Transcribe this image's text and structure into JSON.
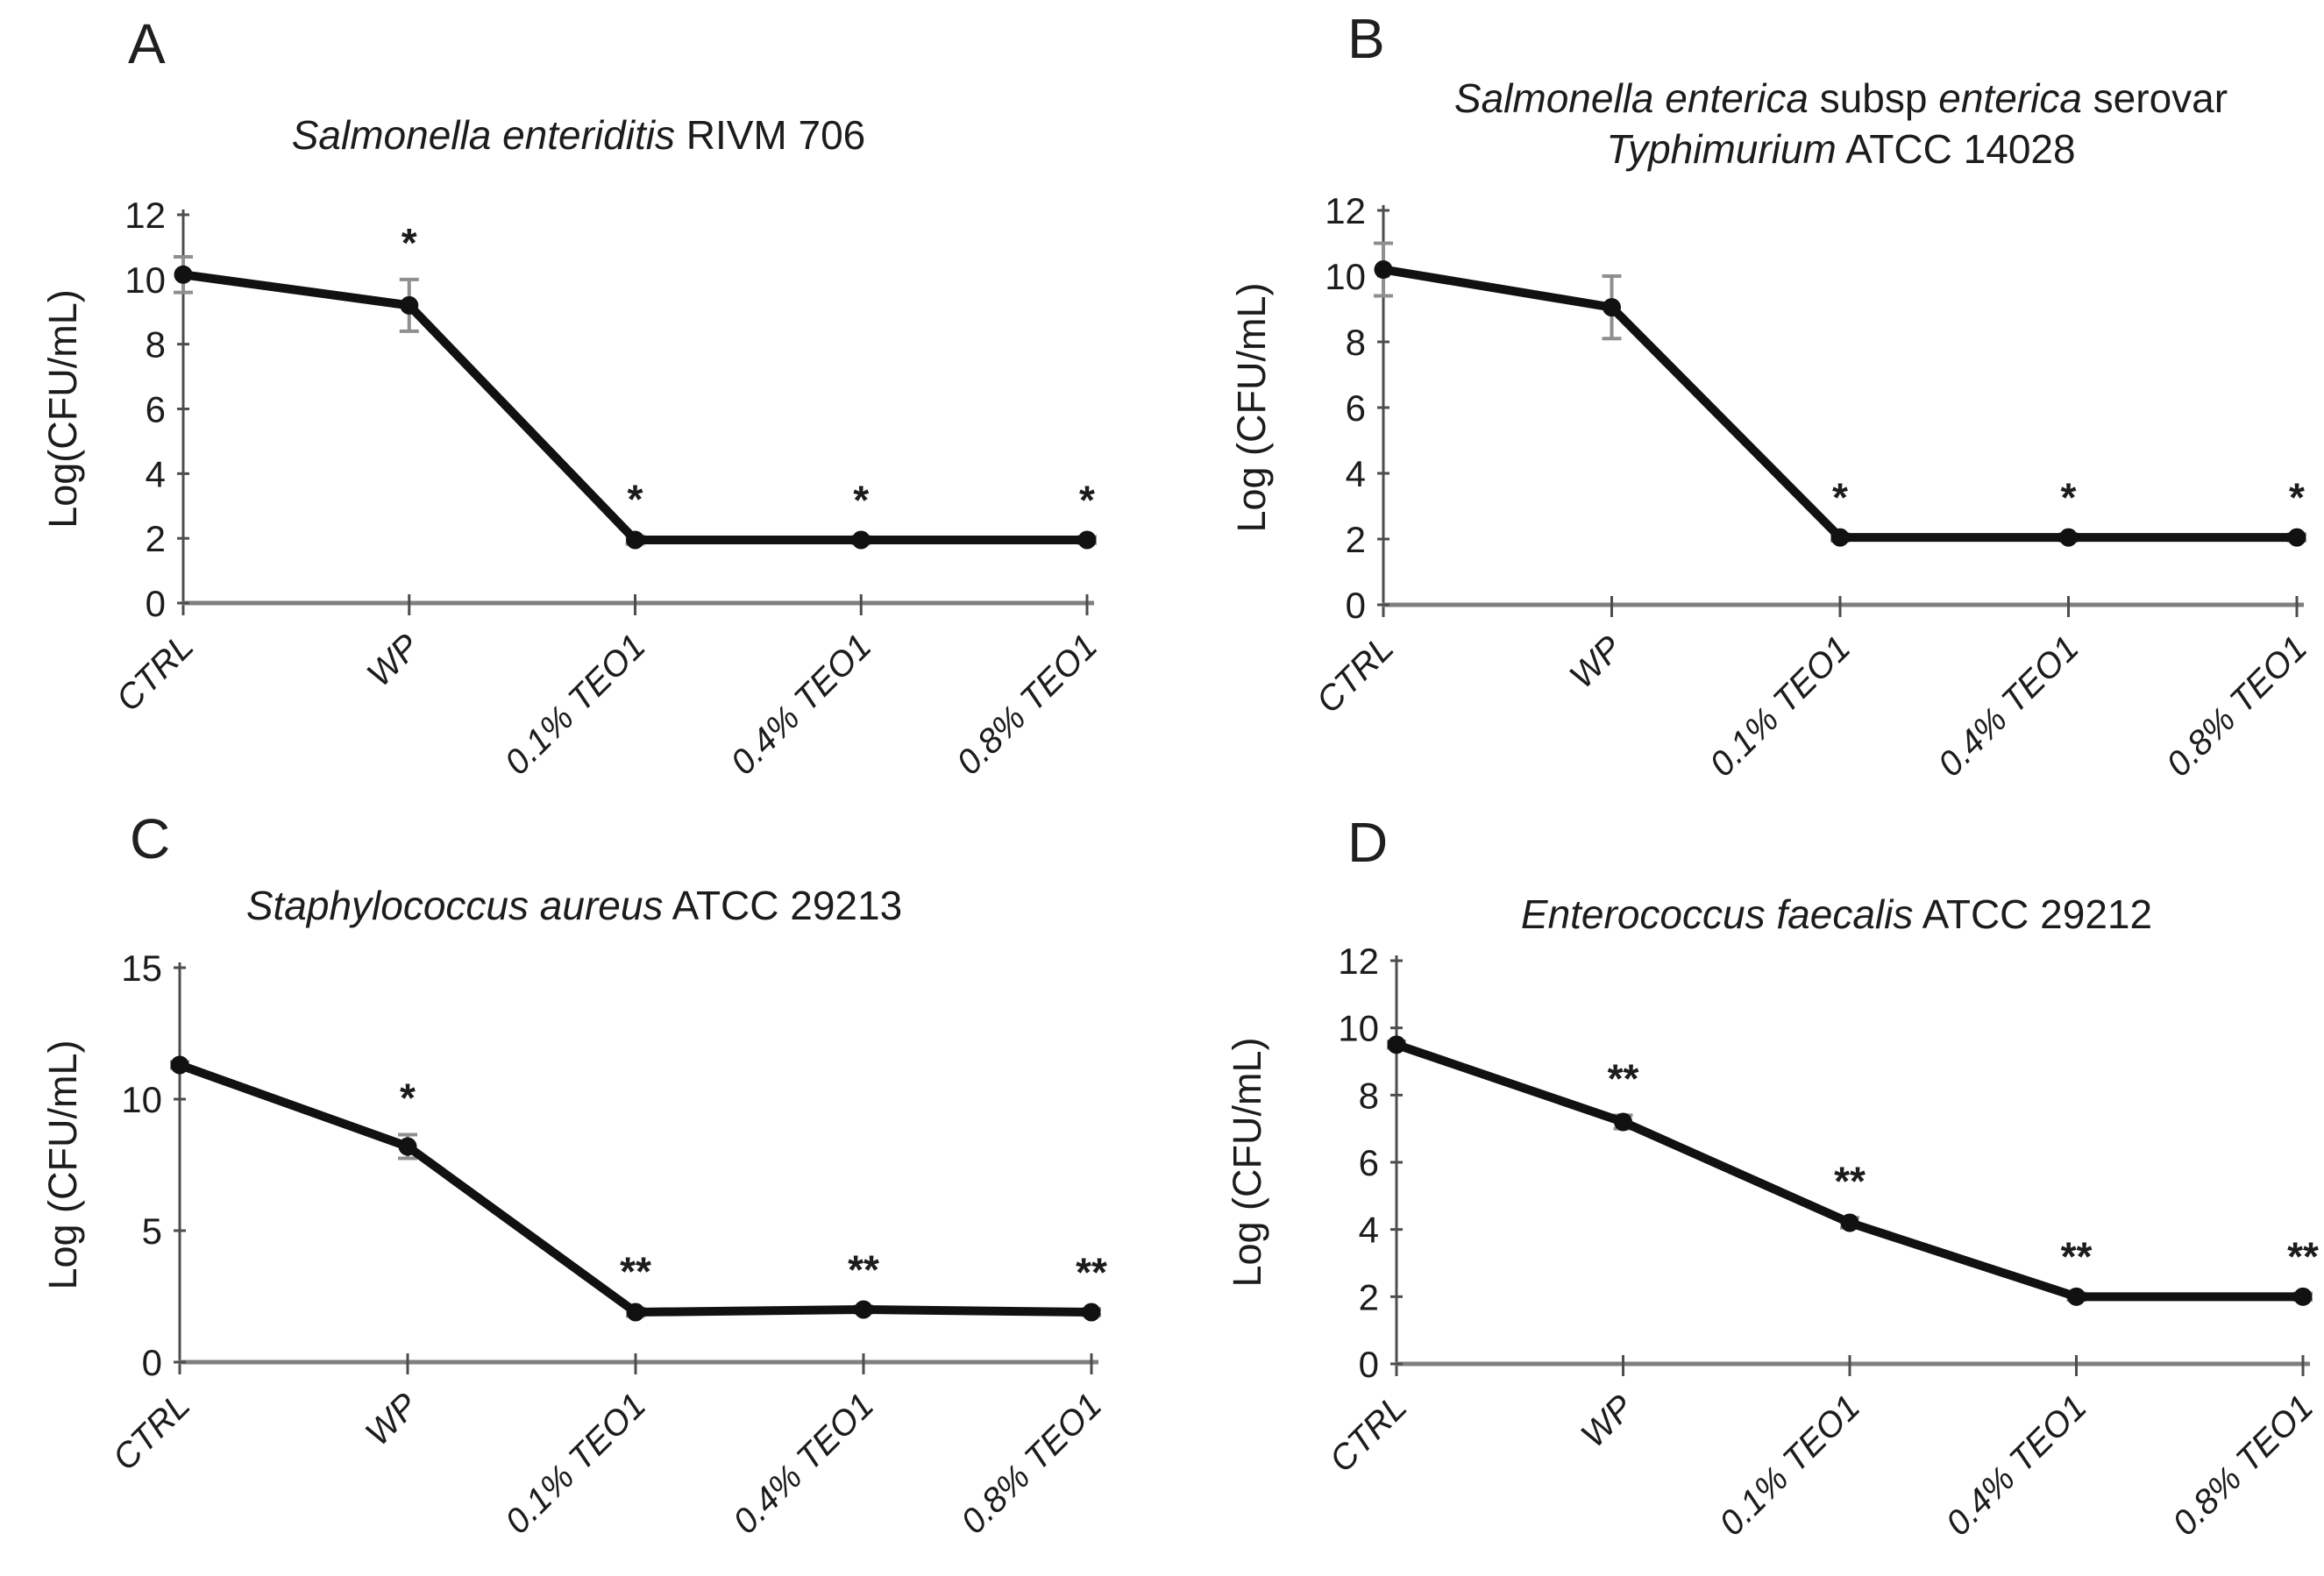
{
  "style": {
    "line_color": "#111111",
    "marker_color": "#111111",
    "error_bar_color": "#8f8f8f",
    "x_axis_color": "#7f7f7f",
    "y_axis_color": "#4d4d4d",
    "text_color": "#1c1c1c",
    "background": "#ffffff"
  },
  "chart_data": [
    {
      "type": "line",
      "letter": "A",
      "title_lines": [
        [
          {
            "text": "Salmonella enteriditis",
            "italic": true
          },
          {
            "text": " RIVM 706",
            "italic": false
          }
        ]
      ],
      "ylabel": "Log(CFU/mL)",
      "xlabel": "",
      "categories": [
        "CTRL",
        "WP",
        "0.1% TEO1",
        "0.4% TEO1",
        "0.8% TEO1"
      ],
      "values": [
        10.15,
        9.2,
        1.95,
        1.95,
        1.95
      ],
      "errors": [
        0.55,
        0.8,
        0.12,
        0.1,
        0.1
      ],
      "significance": [
        "",
        "*",
        "*",
        "*",
        "*"
      ],
      "ylim": [
        0,
        12
      ],
      "yticks": [
        0,
        2,
        4,
        6,
        8,
        10,
        12
      ],
      "grid": false,
      "legend": false
    },
    {
      "type": "line",
      "letter": "B",
      "title_lines": [
        [
          {
            "text": "Salmonella enterica",
            "italic": true
          },
          {
            "text": " subsp ",
            "italic": false
          },
          {
            "text": "enterica",
            "italic": true
          },
          {
            "text": " serovar",
            "italic": false
          }
        ],
        [
          {
            "text": "Typhimurium",
            "italic": true
          },
          {
            "text": " ATCC 14028",
            "italic": false
          }
        ]
      ],
      "ylabel": "Log (CFU/mL)",
      "xlabel": "",
      "categories": [
        "CTRL",
        "WP",
        "0.1% TEO1",
        "0.4% TEO1",
        "0.8% TEO1"
      ],
      "values": [
        10.2,
        9.05,
        2.05,
        2.05,
        2.05
      ],
      "errors": [
        0.8,
        0.95,
        0.1,
        0.1,
        0.1
      ],
      "significance": [
        "",
        "",
        "*",
        "*",
        "*"
      ],
      "ylim": [
        0,
        12
      ],
      "yticks": [
        0,
        2,
        4,
        6,
        8,
        10,
        12
      ],
      "grid": false,
      "legend": false
    },
    {
      "type": "line",
      "letter": "C",
      "title_lines": [
        [
          {
            "text": "Staphylococcus aureus",
            "italic": true
          },
          {
            "text": " ATCC 29213",
            "italic": false
          }
        ]
      ],
      "ylabel": "Log (CFU/mL)",
      "xlabel": "",
      "categories": [
        "CTRL",
        "WP",
        "0.1% TEO1",
        "0.4% TEO1",
        "0.8% TEO1"
      ],
      "values": [
        11.3,
        8.2,
        1.9,
        2.0,
        1.9
      ],
      "errors": [
        0.12,
        0.45,
        0.15,
        0.12,
        0.12
      ],
      "significance": [
        "",
        "*",
        "**",
        "**",
        "**"
      ],
      "ylim": [
        0,
        15
      ],
      "yticks": [
        0,
        5,
        10,
        15
      ],
      "grid": false,
      "legend": false
    },
    {
      "type": "line",
      "letter": "D",
      "title_lines": [
        [
          {
            "text": "Enterococcus faecalis",
            "italic": true
          },
          {
            "text": " ATCC 29212",
            "italic": false
          }
        ]
      ],
      "ylabel": "Log (CFU/mL)",
      "xlabel": "",
      "categories": [
        "CTRL",
        "WP",
        "0.1% TEO1",
        "0.4% TEO1",
        "0.8% TEO1"
      ],
      "values": [
        9.5,
        7.2,
        4.2,
        2.0,
        2.0
      ],
      "errors": [
        0.1,
        0.2,
        0.15,
        0.1,
        0.1
      ],
      "significance": [
        "",
        "**",
        "**",
        "**",
        "**"
      ],
      "ylim": [
        0,
        12
      ],
      "yticks": [
        0,
        2,
        4,
        6,
        8,
        10,
        12
      ],
      "grid": false,
      "legend": false
    }
  ]
}
